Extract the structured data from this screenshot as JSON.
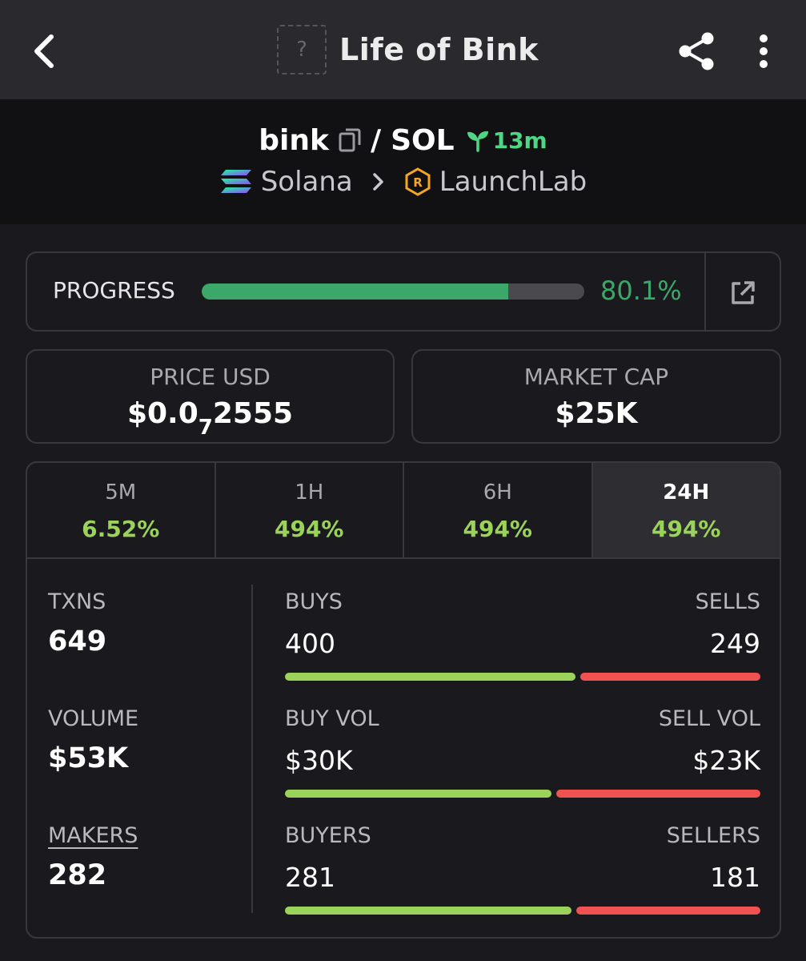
{
  "header": {
    "title": "Life of Bink",
    "token_placeholder": "?"
  },
  "pair": {
    "base": "bink",
    "separator": "/",
    "quote": "SOL",
    "age": "13m",
    "chain": "Solana",
    "dex": "LaunchLab"
  },
  "progress": {
    "label": "PROGRESS",
    "value_text": "80.1%",
    "fraction": 0.801
  },
  "price": {
    "label": "PRICE USD",
    "prefix": "$0.0",
    "zeros": "7",
    "digits": "2555"
  },
  "market_cap": {
    "label": "MARKET CAP",
    "value": "$25K"
  },
  "timeframes": [
    {
      "label": "5M",
      "change": "6.52%"
    },
    {
      "label": "1H",
      "change": "494%"
    },
    {
      "label": "6H",
      "change": "494%"
    },
    {
      "label": "24H",
      "change": "494%"
    }
  ],
  "active_timeframe": "24H",
  "stats": {
    "txns": {
      "label": "TXNS",
      "value": "649"
    },
    "volume": {
      "label": "VOLUME",
      "value": "$53K"
    },
    "makers": {
      "label": "MAKERS",
      "value": "282"
    }
  },
  "splits": {
    "txns": {
      "left_label": "BUYS",
      "left_value": "400",
      "right_label": "SELLS",
      "right_value": "249",
      "buy_share": 0.616
    },
    "volume": {
      "left_label": "BUY VOL",
      "left_value": "$30K",
      "right_label": "SELL VOL",
      "right_value": "$23K",
      "buy_share": 0.566
    },
    "makers": {
      "left_label": "BUYERS",
      "left_value": "281",
      "right_label": "SELLERS",
      "right_value": "181",
      "buy_share": 0.608
    }
  },
  "colors": {
    "positive": "#9bd35a",
    "negative": "#f05252",
    "progress": "#3ba86a",
    "age": "#4fd685"
  }
}
